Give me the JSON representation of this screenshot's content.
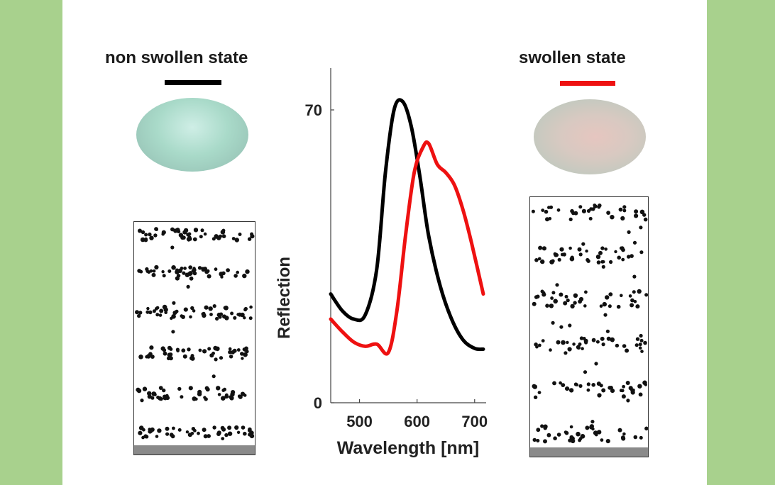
{
  "colors": {
    "background": "#a8d18d",
    "panel": "#ffffff",
    "non_swollen": "#000000",
    "swollen": "#ee1111"
  },
  "labels": {
    "non_swollen": "non swollen state",
    "swollen": "swollen state"
  },
  "chart_data": {
    "type": "line",
    "xlabel": "Wavelength [nm]",
    "ylabel": "Reflection",
    "xlim": [
      450,
      720
    ],
    "ylim": [
      0,
      80
    ],
    "xticks": [
      500,
      600,
      700
    ],
    "yticks": [
      0,
      70
    ],
    "grid": false,
    "series": [
      {
        "color": "#000000",
        "x": [
          450,
          470,
          490,
          510,
          530,
          545,
          560,
          575,
          590,
          605,
          620,
          640,
          660,
          680,
          700,
          715
        ],
        "y": [
          26,
          22,
          20,
          21,
          32,
          55,
          70,
          72,
          66,
          54,
          40,
          28,
          20,
          15,
          13,
          12.8
        ]
      },
      {
        "color": "#ee1111",
        "x": [
          450,
          470,
          490,
          510,
          530,
          550,
          565,
          580,
          595,
          610,
          620,
          635,
          650,
          665,
          680,
          695,
          715
        ],
        "y": [
          20,
          17,
          14.5,
          13.5,
          14,
          12,
          22,
          40,
          55,
          61,
          62,
          57,
          55,
          52,
          46,
          38,
          26
        ]
      }
    ]
  }
}
